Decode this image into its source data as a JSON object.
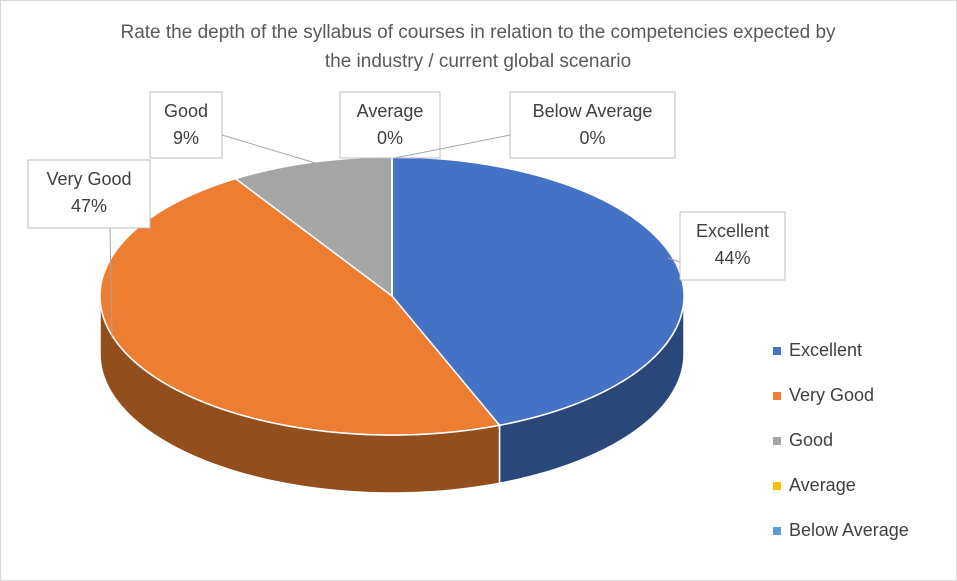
{
  "chart_data": {
    "type": "pie3d",
    "title": "Rate the depth of the syllabus of courses in relation to the competencies expected by the industry / current global scenario",
    "categories": [
      "Excellent",
      "Very Good",
      "Good",
      "Average",
      "Below Average"
    ],
    "values": [
      44,
      47,
      9,
      0,
      0
    ],
    "value_labels": [
      "44%",
      "47%",
      "9%",
      "0%",
      "0%"
    ],
    "colors": [
      "#4472c4",
      "#ed7d31",
      "#a5a5a5",
      "#ffc000",
      "#5b9bd5"
    ],
    "legend": "right"
  }
}
